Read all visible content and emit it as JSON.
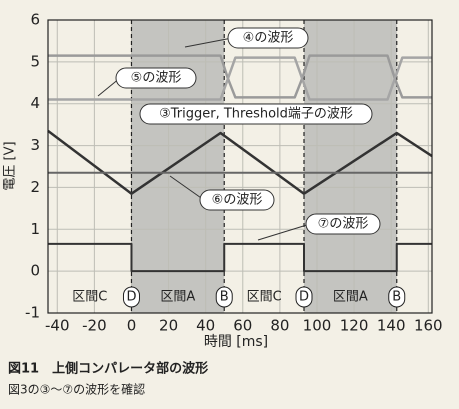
{
  "chart_data": {
    "type": "line",
    "title": "図11　上側コンパレータ部の波形",
    "subtitle": "図3の③～⑦の波形を確認",
    "xlabel": "時間 [ms]",
    "ylabel": "電圧 [V]",
    "xlim": [
      -45,
      162
    ],
    "ylim": [
      -1,
      6
    ],
    "xticks": [
      -40,
      -20,
      0,
      20,
      40,
      60,
      80,
      100,
      120,
      140,
      160
    ],
    "yticks": [
      -1,
      0,
      1,
      2,
      3,
      4,
      5,
      6
    ],
    "grid": true,
    "series": [
      {
        "name": "④の波形",
        "color": "#9a9a9a",
        "width": 2.5,
        "x": [
          -45,
          48,
          52,
          56,
          88,
          92,
          96,
          138,
          142,
          146,
          162
        ],
        "values": [
          5.15,
          5.15,
          4.6,
          4.15,
          4.15,
          4.6,
          5.15,
          5.15,
          4.6,
          4.15,
          4.15
        ]
      },
      {
        "name": "⑤の波形",
        "color": "#a5a5a5",
        "width": 2.5,
        "x": [
          -45,
          48,
          52,
          56,
          88,
          92,
          96,
          138,
          142,
          146,
          162
        ],
        "values": [
          4.1,
          4.1,
          4.6,
          5.1,
          5.1,
          4.6,
          4.1,
          4.1,
          4.6,
          5.1,
          5.1
        ]
      },
      {
        "name": "③Trigger, Threshold端子の波形",
        "color": "#333333",
        "width": 2.5,
        "x": [
          -45,
          0,
          48,
          93,
          143,
          162
        ],
        "values": [
          3.35,
          1.85,
          3.3,
          1.85,
          3.3,
          2.75
        ]
      },
      {
        "name": "⑥の波形",
        "color": "#666666",
        "width": 2,
        "x": [
          -45,
          162
        ],
        "values": [
          2.35,
          2.35
        ]
      },
      {
        "name": "⑦の波形",
        "color": "#333333",
        "width": 2,
        "x": [
          -45,
          0,
          0,
          50,
          50,
          93,
          93,
          143,
          143,
          162
        ],
        "values": [
          0.65,
          0.65,
          0,
          0,
          0.65,
          0.65,
          0,
          0,
          0.65,
          0.65
        ]
      }
    ],
    "regions": [
      {
        "label": "区間C",
        "start": -45,
        "end": 0,
        "shaded": false
      },
      {
        "label": "区間A",
        "start": 0,
        "end": 50,
        "shaded": true
      },
      {
        "label": "区間C",
        "start": 50,
        "end": 93,
        "shaded": false
      },
      {
        "label": "区間A",
        "start": 93,
        "end": 143,
        "shaded": true
      }
    ],
    "boundaries": [
      {
        "label": "D",
        "x": 0
      },
      {
        "label": "B",
        "x": 50
      },
      {
        "label": "D",
        "x": 93
      },
      {
        "label": "B",
        "x": 143
      }
    ]
  }
}
